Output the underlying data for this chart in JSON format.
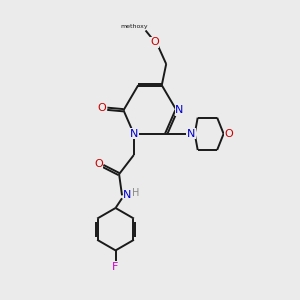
{
  "bg_color": "#ebebeb",
  "bond_color": "#1a1a1a",
  "N_color": "#0000cc",
  "O_color": "#cc0000",
  "F_color": "#cc00cc",
  "H_color": "#888888",
  "lw": 1.4,
  "dbo": 0.04,
  "xlim": [
    0,
    10
  ],
  "ylim": [
    0,
    10
  ]
}
